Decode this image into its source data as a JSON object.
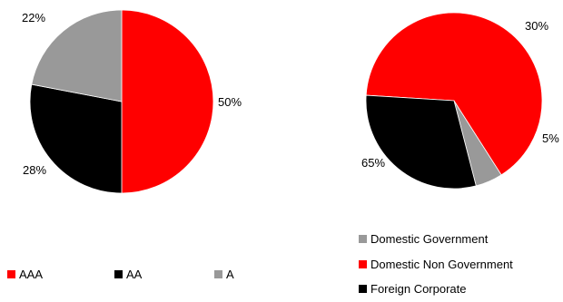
{
  "chart_data": [
    {
      "type": "pie",
      "labels": [
        "AAA",
        "AA",
        "A"
      ],
      "values": [
        50,
        28,
        22
      ],
      "value_labels": [
        "50%",
        "28%",
        "22%"
      ],
      "colors": [
        "#ff0000",
        "#000000",
        "#999999"
      ],
      "legend": "bottom"
    },
    {
      "type": "pie",
      "labels": [
        "Domestic Government",
        "Domestic Non Government",
        "Foreign Corporate"
      ],
      "values": [
        5,
        65,
        30
      ],
      "value_labels": [
        "5%",
        "65%",
        "30%"
      ],
      "colors": [
        "#999999",
        "#ff0000",
        "#000000"
      ],
      "legend": "bottom-right"
    }
  ]
}
